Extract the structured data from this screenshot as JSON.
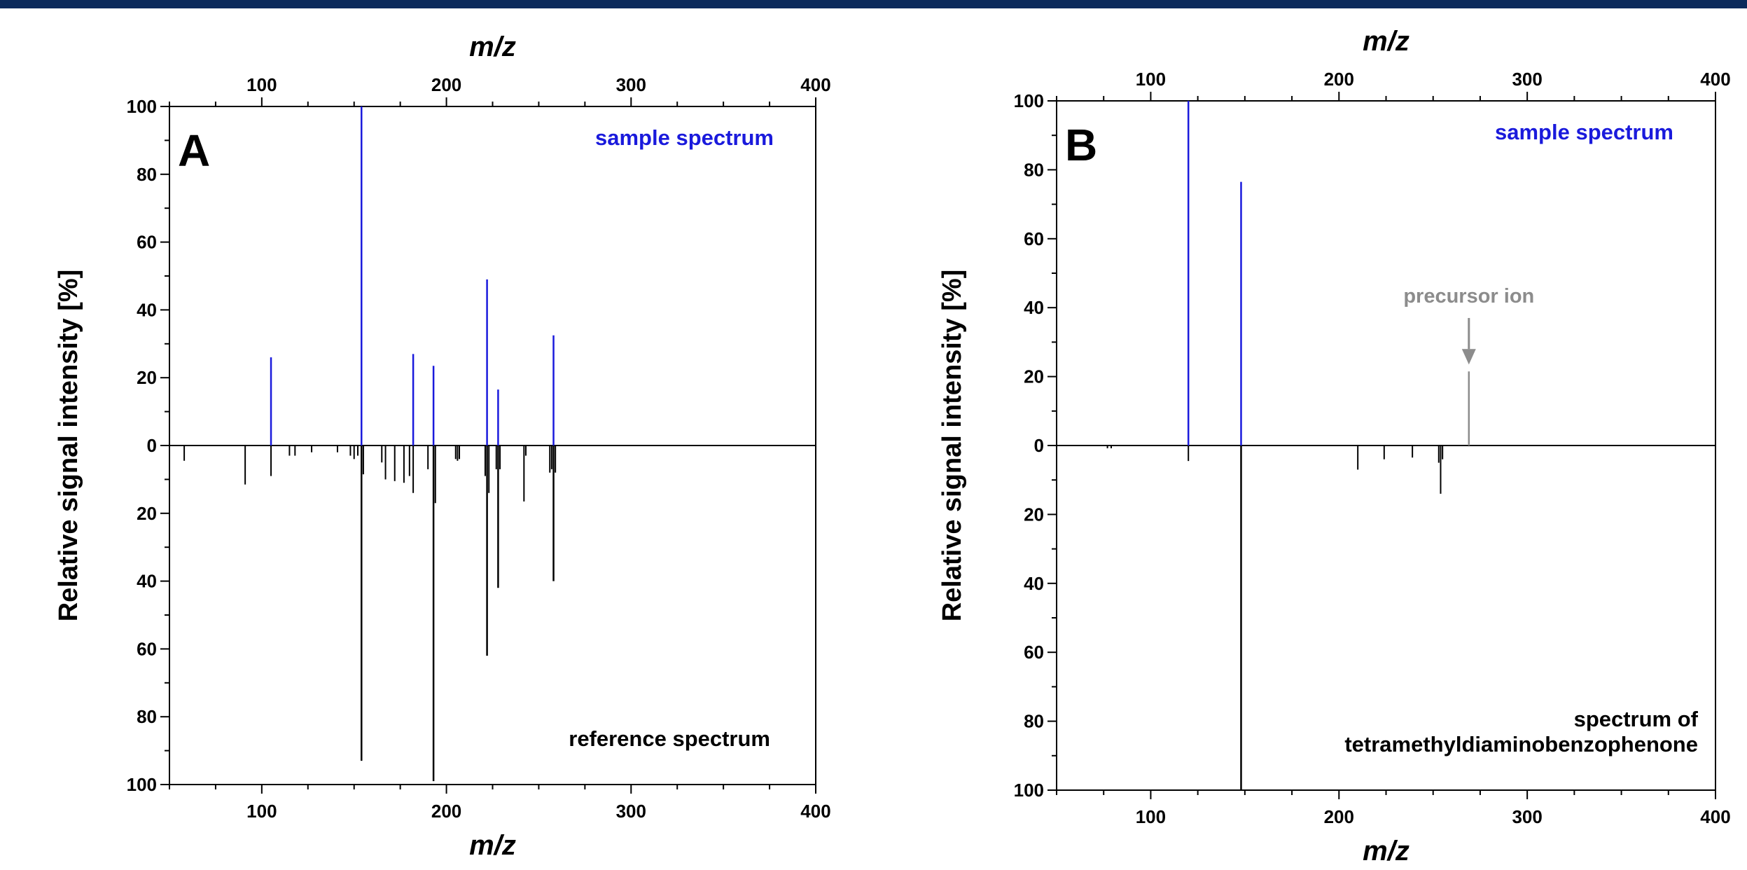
{
  "colors": {
    "sample": "#1a1adc",
    "reference": "#000000",
    "precursor": "#8c8c8c",
    "top_bar": "#0b2a5b"
  },
  "chart_data": [
    {
      "type": "mirror_stick",
      "panel_label": "A",
      "xlabel": "m/z",
      "ylabel": "Relative signal intensity [%]",
      "xlim": [
        50,
        400
      ],
      "ylim_top": [
        0,
        100
      ],
      "ylim_bottom": [
        0,
        100
      ],
      "x_ticks": [
        100,
        200,
        300,
        400
      ],
      "y_ticks_top": [
        0,
        20,
        40,
        60,
        80,
        100
      ],
      "y_ticks_bottom": [
        20,
        40,
        60,
        80,
        100
      ],
      "sample_label": "sample spectrum",
      "reference_label": [
        "reference spectrum"
      ],
      "sample_peaks": [
        {
          "x": 105,
          "y": 26
        },
        {
          "x": 154,
          "y": 100
        },
        {
          "x": 182,
          "y": 27
        },
        {
          "x": 193,
          "y": 23.5
        },
        {
          "x": 222,
          "y": 49
        },
        {
          "x": 228,
          "y": 16.5
        },
        {
          "x": 258,
          "y": 32.5
        }
      ],
      "reference_peaks": [
        {
          "x": 58,
          "y": 4.5
        },
        {
          "x": 91,
          "y": 11.5
        },
        {
          "x": 105,
          "y": 9
        },
        {
          "x": 115,
          "y": 3
        },
        {
          "x": 118,
          "y": 3
        },
        {
          "x": 127,
          "y": 2
        },
        {
          "x": 141,
          "y": 2
        },
        {
          "x": 148,
          "y": 3
        },
        {
          "x": 150,
          "y": 4
        },
        {
          "x": 152,
          "y": 3
        },
        {
          "x": 154,
          "y": 93
        },
        {
          "x": 155,
          "y": 8.5
        },
        {
          "x": 165,
          "y": 5
        },
        {
          "x": 167,
          "y": 10
        },
        {
          "x": 172,
          "y": 10.5
        },
        {
          "x": 177,
          "y": 11
        },
        {
          "x": 180,
          "y": 9
        },
        {
          "x": 182,
          "y": 14
        },
        {
          "x": 190,
          "y": 7
        },
        {
          "x": 193,
          "y": 99
        },
        {
          "x": 194,
          "y": 17
        },
        {
          "x": 205,
          "y": 4
        },
        {
          "x": 206,
          "y": 4.5
        },
        {
          "x": 207,
          "y": 4
        },
        {
          "x": 221,
          "y": 9
        },
        {
          "x": 222,
          "y": 62
        },
        {
          "x": 223,
          "y": 14
        },
        {
          "x": 227,
          "y": 7
        },
        {
          "x": 228,
          "y": 42
        },
        {
          "x": 229,
          "y": 7
        },
        {
          "x": 242,
          "y": 16.5
        },
        {
          "x": 243,
          "y": 3
        },
        {
          "x": 256,
          "y": 8
        },
        {
          "x": 257,
          "y": 7
        },
        {
          "x": 258,
          "y": 40
        },
        {
          "x": 259,
          "y": 8
        }
      ]
    },
    {
      "type": "mirror_stick",
      "panel_label": "B",
      "xlabel": "m/z",
      "ylabel": "Relative signal intensity [%]",
      "xlim": [
        50,
        400
      ],
      "ylim_top": [
        0,
        100
      ],
      "ylim_bottom": [
        0,
        100
      ],
      "x_ticks": [
        100,
        200,
        300,
        400
      ],
      "y_ticks_top": [
        0,
        20,
        40,
        60,
        80,
        100
      ],
      "y_ticks_bottom": [
        20,
        40,
        60,
        80,
        100
      ],
      "sample_label": "sample spectrum",
      "reference_label": [
        "spectrum of",
        "tetramethyldiaminobenzophenone"
      ],
      "precursor_label": "precursor ion",
      "sample_peaks": [
        {
          "x": 120,
          "y": 100
        },
        {
          "x": 148,
          "y": 76.5
        }
      ],
      "precursor_peaks": [
        {
          "x": 269,
          "y": 21.5
        }
      ],
      "reference_peaks": [
        {
          "x": 77,
          "y": 0.8
        },
        {
          "x": 79,
          "y": 0.8
        },
        {
          "x": 120,
          "y": 4.5
        },
        {
          "x": 148,
          "y": 100
        },
        {
          "x": 210,
          "y": 7
        },
        {
          "x": 224,
          "y": 4
        },
        {
          "x": 239,
          "y": 3.5
        },
        {
          "x": 253,
          "y": 5
        },
        {
          "x": 254,
          "y": 14
        },
        {
          "x": 255,
          "y": 4
        }
      ]
    }
  ]
}
